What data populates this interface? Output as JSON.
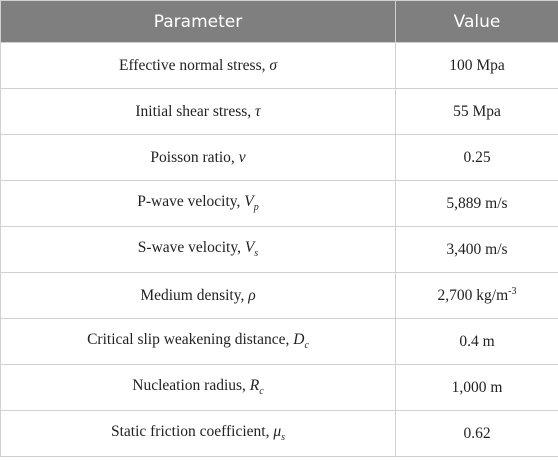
{
  "table": {
    "header": [
      "Parameter",
      "Value"
    ],
    "rows": [
      {
        "parameter": "Effective normal stress, ",
        "symbol": "σ",
        "value": "100 Mpa"
      },
      {
        "parameter": "Initial shear stress, ",
        "symbol": "τ",
        "value": "55 Mpa"
      },
      {
        "parameter": "Poisson ratio, ",
        "symbol": "ν",
        "value": "0.25"
      },
      {
        "parameter": "P-wave velocity, ",
        "symbol": "V",
        "subscript": "p",
        "value": "5,889 m/s"
      },
      {
        "parameter": "S-wave velocity, ",
        "symbol": "V",
        "subscript": "s",
        "value": "3,400 m/s"
      },
      {
        "parameter": "Medium density, ",
        "symbol": "ρ",
        "value": "2,700 kg/m",
        "value_superscript": "-3"
      },
      {
        "parameter": "Critical slip weakening distance, ",
        "symbol": "D",
        "subscript": "c",
        "value": "0.4 m"
      },
      {
        "parameter": "Nucleation radius, ",
        "symbol": "R",
        "subscript": "c",
        "value": "1,000 m"
      },
      {
        "parameter": "Static friction coefficient, ",
        "symbol": "μ",
        "subscript": "s",
        "value": "0.62"
      }
    ]
  }
}
